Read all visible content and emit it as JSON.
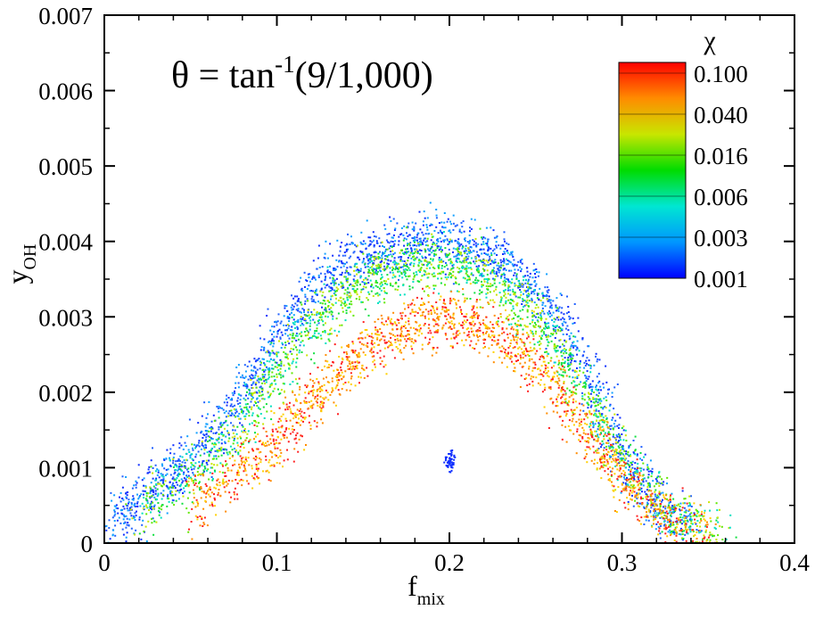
{
  "chart_data": {
    "type": "scatter",
    "title_parts": {
      "prefix": "θ = tan",
      "superscript": "-1",
      "suffix": "(9/1,000)"
    },
    "xlabel": {
      "base": "f",
      "subscript": "mix"
    },
    "ylabel": {
      "base": "y",
      "subscript": "OH"
    },
    "xlim": [
      0,
      0.4
    ],
    "ylim": [
      0,
      0.007
    ],
    "x_ticks": [
      "0",
      "0.1",
      "0.2",
      "0.3",
      "0.4"
    ],
    "x_tick_values": [
      0,
      0.1,
      0.2,
      0.3,
      0.4
    ],
    "y_ticks": [
      "0",
      "0.001",
      "0.002",
      "0.003",
      "0.004",
      "0.005",
      "0.006",
      "0.007"
    ],
    "y_tick_values": [
      0,
      0.001,
      0.002,
      0.003,
      0.004,
      0.005,
      0.006,
      0.007
    ],
    "grid": false,
    "legend_placement": "top-right",
    "colorbar": {
      "title": "χ",
      "labels": [
        "0.100",
        "0.040",
        "0.016",
        "0.006",
        "0.003",
        "0.001"
      ],
      "values": [
        0.1,
        0.04,
        0.016,
        0.006,
        0.003,
        0.001
      ],
      "colors": [
        "#ff0000",
        "#ff8c00",
        "#c8e600",
        "#00dc00",
        "#00e6d2",
        "#0096ff",
        "#0000ff"
      ]
    },
    "series": [
      {
        "chi": 0.001,
        "color": "#1030ff",
        "points": [
          [
            0.005,
            0.0002
          ],
          [
            0.02,
            0.0006
          ],
          [
            0.04,
            0.0009
          ],
          [
            0.06,
            0.0014
          ],
          [
            0.08,
            0.002
          ],
          [
            0.1,
            0.0027
          ],
          [
            0.12,
            0.0033
          ],
          [
            0.14,
            0.0037
          ],
          [
            0.16,
            0.0039
          ],
          [
            0.18,
            0.004
          ],
          [
            0.2,
            0.004
          ],
          [
            0.22,
            0.0039
          ],
          [
            0.24,
            0.0036
          ],
          [
            0.26,
            0.0031
          ],
          [
            0.28,
            0.0022
          ],
          [
            0.3,
            0.0012
          ],
          [
            0.32,
            0.0005
          ],
          [
            0.34,
            0.0002
          ],
          [
            0.2,
            0.0011
          ]
        ]
      },
      {
        "chi": 0.006,
        "color": "#10e040",
        "points": [
          [
            0.02,
            0.0004
          ],
          [
            0.05,
            0.0009
          ],
          [
            0.08,
            0.0016
          ],
          [
            0.1,
            0.0023
          ],
          [
            0.12,
            0.0029
          ],
          [
            0.14,
            0.0033
          ],
          [
            0.16,
            0.0036
          ],
          [
            0.18,
            0.0037
          ],
          [
            0.2,
            0.0037
          ],
          [
            0.22,
            0.0036
          ],
          [
            0.24,
            0.0032
          ],
          [
            0.26,
            0.0027
          ],
          [
            0.28,
            0.0019
          ],
          [
            0.3,
            0.0011
          ],
          [
            0.33,
            0.0004
          ],
          [
            0.36,
            0.0001
          ]
        ]
      },
      {
        "chi": 0.1,
        "color": "#ff2020",
        "points": [
          [
            0.05,
            0.0005
          ],
          [
            0.08,
            0.001
          ],
          [
            0.1,
            0.0014
          ],
          [
            0.12,
            0.0019
          ],
          [
            0.14,
            0.0024
          ],
          [
            0.16,
            0.0027
          ],
          [
            0.18,
            0.0029
          ],
          [
            0.2,
            0.003
          ],
          [
            0.22,
            0.0029
          ],
          [
            0.24,
            0.0026
          ],
          [
            0.26,
            0.0021
          ],
          [
            0.28,
            0.0015
          ],
          [
            0.3,
            0.0009
          ],
          [
            0.32,
            0.0004
          ],
          [
            0.35,
            0.0001
          ]
        ]
      }
    ]
  }
}
